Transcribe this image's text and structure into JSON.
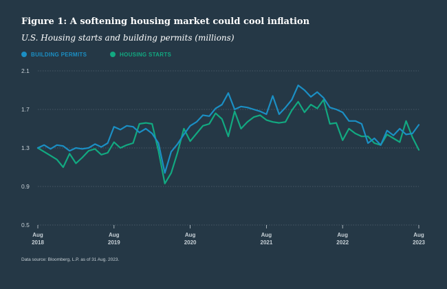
{
  "figure": {
    "title": "Figure 1: A softening housing market could cool inflation",
    "subtitle": "U.S. Housing starts and building permits (millions)",
    "source": "Data source: Bloomberg, L.P. as of 31 Aug. 2023."
  },
  "colors": {
    "background": "#253846",
    "permits": "#1b8fc4",
    "starts": "#12a981",
    "grid": "#6b7a86",
    "tick": "#c7d0d6"
  },
  "chart_data": {
    "type": "line",
    "title": "Figure 1: A softening housing market could cool inflation",
    "subtitle": "U.S. Housing starts and building permits (millions)",
    "ylabel": "millions",
    "ylim": [
      0.5,
      2.1
    ],
    "yticks": [
      2.1,
      1.7,
      1.3,
      0.9,
      0.5
    ],
    "xlim": [
      0,
      60
    ],
    "xticks": [
      {
        "x": 0,
        "line1": "Aug",
        "line2": "2018"
      },
      {
        "x": 12,
        "line1": "Aug",
        "line2": "2019"
      },
      {
        "x": 24,
        "line1": "Aug",
        "line2": "2020"
      },
      {
        "x": 36,
        "line1": "Aug",
        "line2": "2021"
      },
      {
        "x": 48,
        "line1": "Aug",
        "line2": "2022"
      },
      {
        "x": 60,
        "line1": "Aug",
        "line2": "2023"
      }
    ],
    "legend_position": "top-left",
    "series": [
      {
        "name": "BUILDING PERMITS",
        "color": "#1b8fc4",
        "values": [
          1.3,
          1.33,
          1.29,
          1.33,
          1.32,
          1.27,
          1.3,
          1.29,
          1.3,
          1.34,
          1.31,
          1.35,
          1.52,
          1.49,
          1.53,
          1.52,
          1.46,
          1.5,
          1.45,
          1.35,
          1.04,
          1.26,
          1.34,
          1.44,
          1.53,
          1.57,
          1.64,
          1.63,
          1.71,
          1.75,
          1.87,
          1.7,
          1.73,
          1.72,
          1.7,
          1.68,
          1.65,
          1.84,
          1.65,
          1.72,
          1.8,
          1.95,
          1.9,
          1.83,
          1.88,
          1.82,
          1.72,
          1.7,
          1.67,
          1.58,
          1.58,
          1.55,
          1.35,
          1.4,
          1.33,
          1.48,
          1.43,
          1.5,
          1.44,
          1.45,
          1.54
        ]
      },
      {
        "name": "HOUSING STARTS",
        "color": "#12a981",
        "values": [
          1.3,
          1.26,
          1.22,
          1.18,
          1.1,
          1.24,
          1.14,
          1.2,
          1.27,
          1.29,
          1.23,
          1.25,
          1.36,
          1.3,
          1.33,
          1.35,
          1.55,
          1.56,
          1.55,
          1.27,
          0.93,
          1.04,
          1.25,
          1.5,
          1.37,
          1.45,
          1.53,
          1.55,
          1.66,
          1.6,
          1.42,
          1.68,
          1.5,
          1.57,
          1.62,
          1.64,
          1.59,
          1.57,
          1.56,
          1.57,
          1.69,
          1.78,
          1.67,
          1.75,
          1.71,
          1.8,
          1.55,
          1.56,
          1.38,
          1.5,
          1.45,
          1.42,
          1.42,
          1.35,
          1.33,
          1.44,
          1.4,
          1.36,
          1.58,
          1.41,
          1.28
        ]
      }
    ]
  }
}
